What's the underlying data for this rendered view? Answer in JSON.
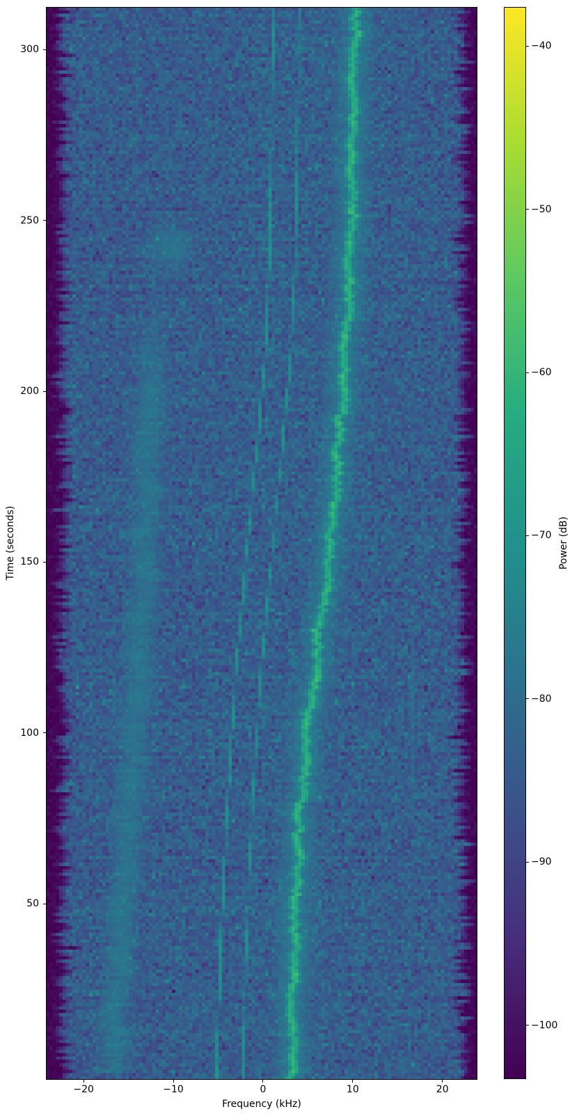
{
  "chart_data": {
    "type": "heatmap",
    "subtype": "spectrogram-waterfall",
    "title": "",
    "xlabel": "Frequency (kHz)",
    "ylabel": "Time (seconds)",
    "colorbar_label": "Power (dB)",
    "colormap": "viridis",
    "grid": false,
    "xlim": [
      -24.2,
      23.9
    ],
    "ylim": [
      -1.5,
      312.5
    ],
    "clim": [
      -103.3,
      -37.6
    ],
    "x_ticks": [
      {
        "value": -20,
        "label": "−20"
      },
      {
        "value": -10,
        "label": "−10"
      },
      {
        "value": 0,
        "label": "0"
      },
      {
        "value": 10,
        "label": "10"
      },
      {
        "value": 20,
        "label": "20"
      }
    ],
    "y_ticks": [
      {
        "value": 50,
        "label": "50"
      },
      {
        "value": 100,
        "label": "100"
      },
      {
        "value": 150,
        "label": "150"
      },
      {
        "value": 200,
        "label": "200"
      },
      {
        "value": 250,
        "label": "250"
      },
      {
        "value": 300,
        "label": "300"
      }
    ],
    "colorbar_ticks": [
      {
        "value": -40,
        "label": "−40"
      },
      {
        "value": -50,
        "label": "−50"
      },
      {
        "value": -60,
        "label": "−60"
      },
      {
        "value": -70,
        "label": "−70"
      },
      {
        "value": -80,
        "label": "−80"
      },
      {
        "value": -90,
        "label": "−90"
      },
      {
        "value": -100,
        "label": "−100"
      }
    ],
    "noise_floor_db": -84.2,
    "noise_sigma_db": 3.4,
    "band_edge_khz": 21.4,
    "band_edge_rolloff_khz": 1.7,
    "out_of_band_db": -102.5,
    "features": [
      {
        "name": "strong-doppler-track",
        "kind": "line",
        "peak_db": -61.5,
        "sigma_khz": 0.33,
        "halo_db": -77.5,
        "halo_sigma_khz": 1.4,
        "wander_khz": 0.3,
        "patchiness_db": 2.0,
        "path": [
          [
            0,
            3.25
          ],
          [
            25,
            3.35
          ],
          [
            50,
            3.6
          ],
          [
            75,
            4.1
          ],
          [
            100,
            5.0
          ],
          [
            125,
            6.2
          ],
          [
            150,
            7.3
          ],
          [
            175,
            8.2
          ],
          [
            200,
            8.9
          ],
          [
            225,
            9.4
          ],
          [
            250,
            9.8
          ],
          [
            280,
            10.05
          ],
          [
            312,
            10.2
          ]
        ]
      },
      {
        "name": "narrowband-tonal-1",
        "kind": "line",
        "peak_db": -71.5,
        "sigma_khz": 0.11,
        "wander_khz": 0.05,
        "patchiness_db": 1.5,
        "path": [
          [
            0,
            -5.15
          ],
          [
            40,
            -4.7
          ],
          [
            80,
            -3.95
          ],
          [
            120,
            -2.95
          ],
          [
            150,
            -1.95
          ],
          [
            182,
            -0.7
          ],
          [
            210,
            0.25
          ],
          [
            240,
            0.75
          ],
          [
            270,
            0.95
          ],
          [
            312,
            1.1
          ]
        ]
      },
      {
        "name": "narrowband-tonal-2",
        "kind": "line",
        "peak_db": -72.0,
        "sigma_khz": 0.11,
        "wander_khz": 0.05,
        "patchiness_db": 1.5,
        "path": [
          [
            0,
            -2.25
          ],
          [
            40,
            -1.85
          ],
          [
            80,
            -1.15
          ],
          [
            120,
            -0.15
          ],
          [
            150,
            0.9
          ],
          [
            182,
            2.1
          ],
          [
            210,
            3.1
          ],
          [
            240,
            3.6
          ],
          [
            270,
            3.85
          ],
          [
            312,
            4.0
          ]
        ]
      },
      {
        "name": "broadband-smudge-left",
        "kind": "band",
        "peak_db": -80.0,
        "sigma_khz": 1.5,
        "wander_khz": 0.45,
        "patchiness_db": 1.5,
        "t_range": [
          0,
          225
        ],
        "fade": [
          198,
          225
        ],
        "path": [
          [
            0,
            -16.9
          ],
          [
            50,
            -15.6
          ],
          [
            100,
            -14.3
          ],
          [
            150,
            -13.2
          ],
          [
            200,
            -12.5
          ],
          [
            225,
            -12.2
          ]
        ]
      },
      {
        "name": "faint-tonal-right",
        "kind": "line",
        "peak_db": -82.5,
        "sigma_khz": 0.12,
        "wander_khz": 0.05,
        "patchiness_db": 1.0,
        "t_range": [
          0,
          140
        ],
        "fade": [
          110,
          140
        ],
        "path": [
          [
            0,
            16.4
          ],
          [
            140,
            16.7
          ]
        ]
      },
      {
        "name": "faint-blob",
        "kind": "blob",
        "peak_db": -79.5,
        "t_center": 242.5,
        "t_sigma": 5.5,
        "f_center": -10.2,
        "f_sigma": 2.2
      }
    ]
  },
  "colors": {
    "figure_background": "#ffffff",
    "text": "#000000",
    "spine": "#000000",
    "viridis_low": "#440154",
    "viridis_mid": "#21918c",
    "viridis_high": "#fde725"
  }
}
